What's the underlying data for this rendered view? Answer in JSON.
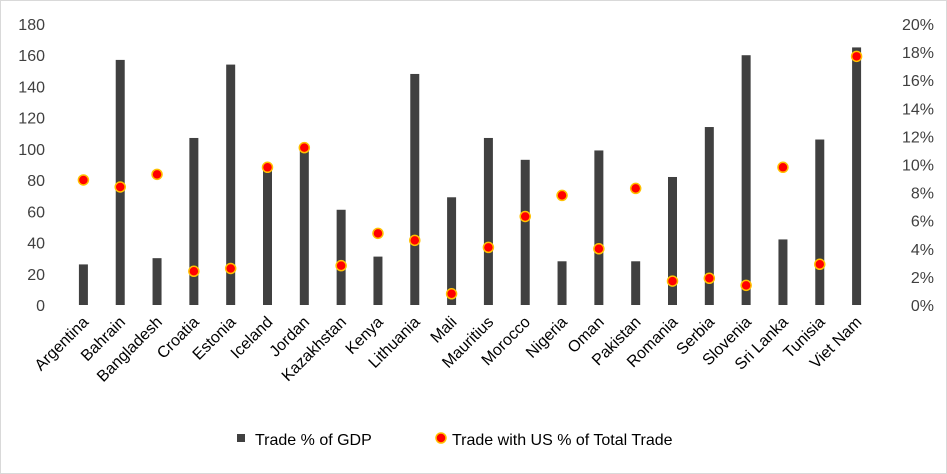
{
  "chart_data": {
    "type": "bar",
    "title": "",
    "xlabel": "",
    "ylabel": "",
    "categories": [
      "Argentina",
      "Bahrain",
      "Bangladesh",
      "Croatia",
      "Estonia",
      "Iceland",
      "Jordan",
      "Kazakhstan",
      "Kenya",
      "Lithuania",
      "Mali",
      "Mauritius",
      "Morocco",
      "Nigeria",
      "Oman",
      "Pakistan",
      "Romania",
      "Serbia",
      "Slovenia",
      "Sri Lanka",
      "Tunisia",
      "Viet Nam"
    ],
    "series": [
      {
        "name": "Trade % of GDP",
        "type": "bar",
        "axis": "left",
        "values": [
          26,
          157,
          30,
          107,
          154,
          88,
          101,
          61,
          31,
          148,
          69,
          107,
          93,
          28,
          99,
          28,
          82,
          114,
          160,
          42,
          106,
          165
        ]
      },
      {
        "name": "Trade with US % of Total Trade",
        "type": "scatter",
        "axis": "right",
        "values": [
          8.9,
          8.4,
          9.3,
          2.4,
          2.6,
          9.8,
          11.2,
          2.8,
          5.1,
          4.6,
          0.8,
          4.1,
          6.3,
          7.8,
          4.0,
          8.3,
          1.7,
          1.9,
          1.4,
          9.8,
          2.9,
          17.7
        ]
      }
    ],
    "y_left": {
      "lim": [
        0,
        180
      ],
      "ticks": [
        0,
        20,
        40,
        60,
        80,
        100,
        120,
        140,
        160,
        180
      ]
    },
    "y_right": {
      "lim": [
        0,
        20
      ],
      "ticks": [
        "0%",
        "2%",
        "4%",
        "6%",
        "8%",
        "10%",
        "12%",
        "14%",
        "16%",
        "18%",
        "20%"
      ]
    },
    "grid": false,
    "legend_position": "bottom",
    "colors": {
      "bar": "#404040",
      "marker_fill": "#ff0000",
      "marker_edge": "#ffc000"
    }
  }
}
